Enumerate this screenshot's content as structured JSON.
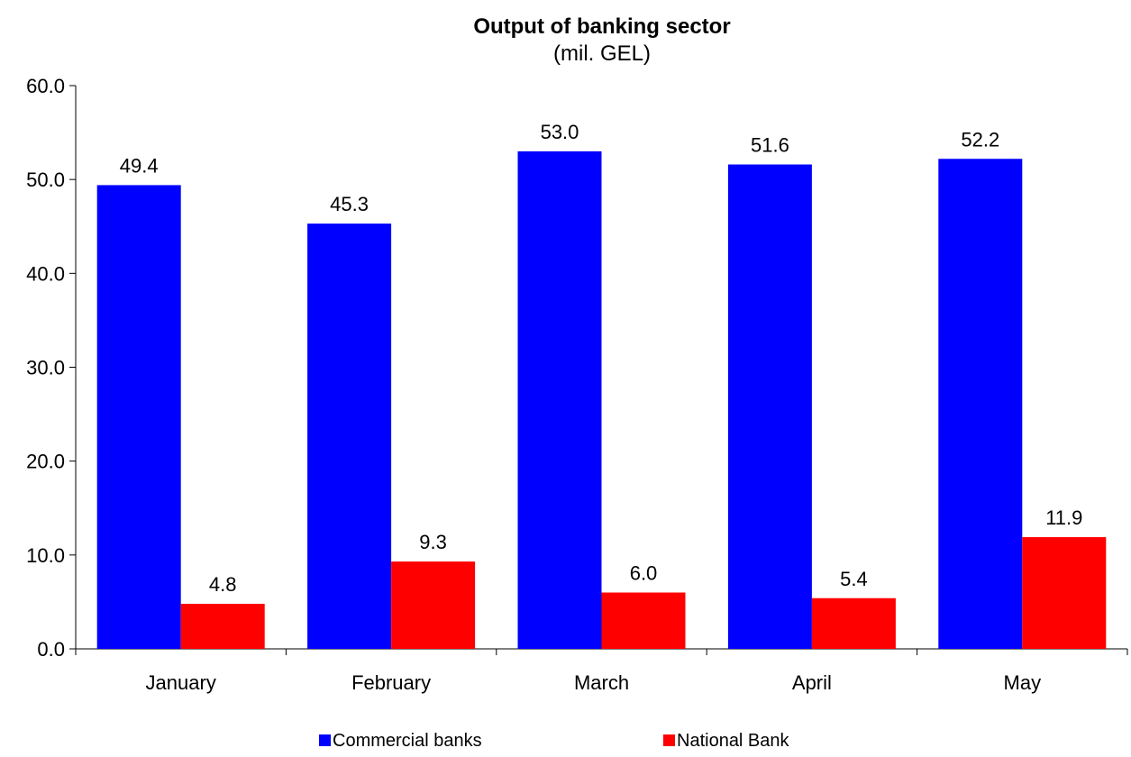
{
  "chart_data": {
    "type": "bar",
    "title": "Output of banking sector",
    "subtitle": "(mil. GEL)",
    "xlabel": "",
    "ylabel": "",
    "categories": [
      "January",
      "February",
      "March",
      "April",
      "May"
    ],
    "series": [
      {
        "name": "Commercial banks",
        "color": "#0000FF",
        "values": [
          49.4,
          45.3,
          53.0,
          51.6,
          52.2
        ],
        "labels": [
          "49.4",
          "45.3",
          "53.0",
          "51.6",
          "52.2"
        ]
      },
      {
        "name": "National Bank",
        "color": "#FF0000",
        "values": [
          4.8,
          9.3,
          6.0,
          5.4,
          11.9
        ],
        "labels": [
          "4.8",
          "9.3",
          "6.0",
          "5.4",
          "11.9"
        ]
      }
    ],
    "ylim": [
      0,
      60
    ],
    "yticks": [
      0,
      10,
      20,
      30,
      40,
      50,
      60
    ],
    "ytick_labels": [
      "0.0",
      "10.0",
      "20.0",
      "30.0",
      "40.0",
      "50.0",
      "60.0"
    ],
    "grid": false,
    "legend_position": "bottom"
  }
}
